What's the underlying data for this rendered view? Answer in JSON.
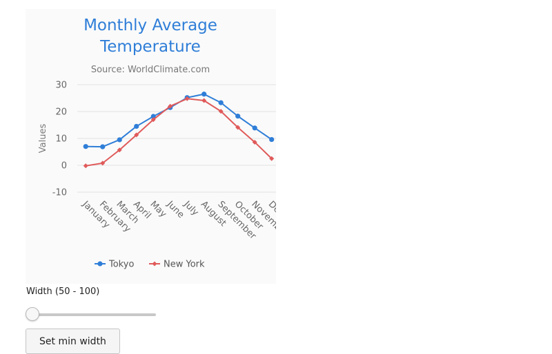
{
  "chart_data": {
    "type": "line",
    "title": "Monthly Average Temperature",
    "subtitle": "Source: WorldClimate.com",
    "ylabel": "Values",
    "xlabel": "",
    "ylim": [
      -10,
      30
    ],
    "yticks": [
      30,
      20,
      10,
      0,
      -10
    ],
    "grid": true,
    "legend_position": "bottom",
    "categories": [
      "January",
      "February",
      "March",
      "April",
      "May",
      "June",
      "July",
      "August",
      "September",
      "October",
      "November",
      "December"
    ],
    "series": [
      {
        "name": "Tokyo",
        "color": "#2f7ed8",
        "marker": "circle",
        "values": [
          7.0,
          6.9,
          9.5,
          14.5,
          18.2,
          21.5,
          25.2,
          26.5,
          23.3,
          18.3,
          13.9,
          9.6
        ]
      },
      {
        "name": "New York",
        "color": "#e05a5a",
        "marker": "diamond",
        "values": [
          -0.2,
          0.8,
          5.7,
          11.3,
          17.0,
          22.0,
          24.8,
          24.1,
          20.1,
          14.1,
          8.6,
          2.5
        ]
      }
    ]
  },
  "controls": {
    "width_label": "Width (50 - 100)",
    "slider_value": 50,
    "slider_min": 50,
    "slider_max": 100,
    "button_label": "Set min width"
  }
}
